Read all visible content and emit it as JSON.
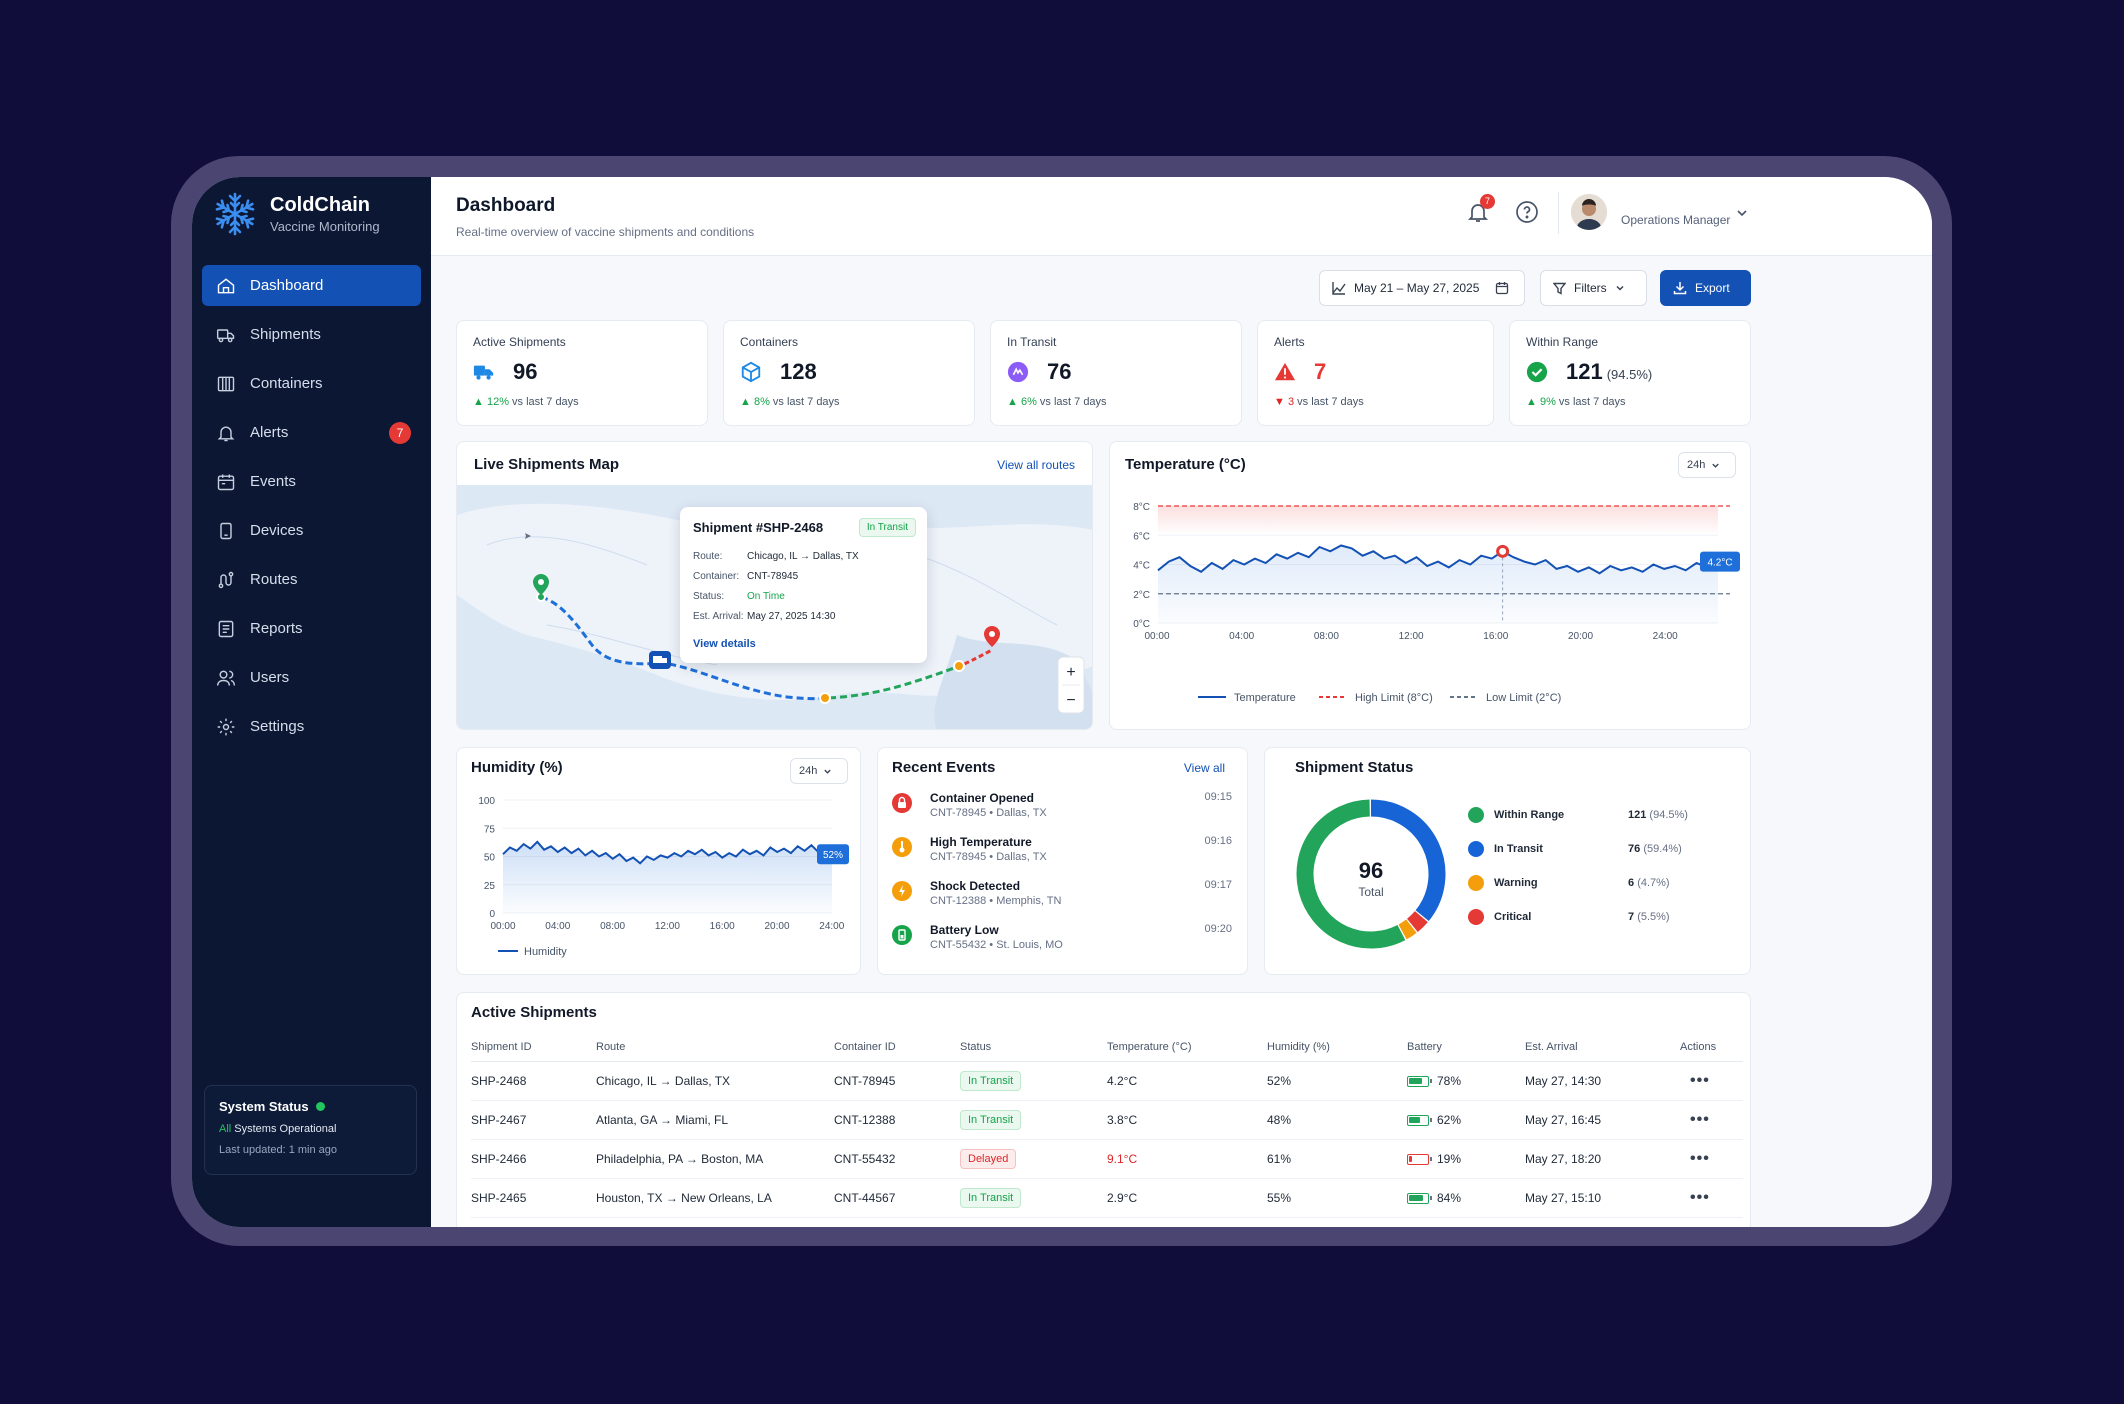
{
  "brand": {
    "title": "ColdChain",
    "subtitle": "Vaccine Monitoring"
  },
  "nav": [
    {
      "label": "Dashboard",
      "icon": "dashboard-icon",
      "active": true
    },
    {
      "label": "Shipments",
      "icon": "truck-icon"
    },
    {
      "label": "Containers",
      "icon": "container-icon"
    },
    {
      "label": "Alerts",
      "icon": "bell-icon",
      "badge": "7"
    },
    {
      "label": "Events",
      "icon": "calendar-icon"
    },
    {
      "label": "Devices",
      "icon": "device-icon"
    },
    {
      "label": "Routes",
      "icon": "route-icon"
    },
    {
      "label": "Reports",
      "icon": "report-icon"
    },
    {
      "label": "Users",
      "icon": "users-icon"
    },
    {
      "label": "Settings",
      "icon": "gear-icon"
    }
  ],
  "system_status": {
    "title": "System Status",
    "all": "All",
    "rest": " Systems Operational",
    "updated": "Last updated: 1 min ago"
  },
  "header": {
    "title": "Dashboard",
    "subtitle": "Real-time overview of vaccine shipments and conditions",
    "notif_count": "7",
    "role": "Operations Manager"
  },
  "toolbar": {
    "date_range": "May 21 – May 27, 2025",
    "filters": "Filters",
    "export": "Export"
  },
  "kpis": [
    {
      "label": "Active Shipments",
      "value": "96",
      "extra": "",
      "delta": "12%",
      "delta_text": " vs last 7 days",
      "dir": "up",
      "icon": "truck-icon",
      "color": "#1e88e5"
    },
    {
      "label": "Containers",
      "value": "128",
      "extra": "",
      "delta": "8%",
      "delta_text": " vs last 7 days",
      "dir": "up",
      "icon": "box-icon",
      "color": "#1e88e5"
    },
    {
      "label": "In Transit",
      "value": "76",
      "extra": "",
      "delta": "6%",
      "delta_text": " vs last 7 days",
      "dir": "up",
      "icon": "transit-icon",
      "color": "#8b5cf6"
    },
    {
      "label": "Alerts",
      "value": "7",
      "extra": "",
      "delta": "3",
      "delta_text": " vs last 7 days",
      "dir": "down",
      "icon": "warning-icon",
      "color": "#e53935"
    },
    {
      "label": "Within Range",
      "value": "121",
      "extra": "(94.5%)",
      "delta": "9%",
      "delta_text": " vs last 7 days",
      "dir": "up",
      "icon": "check-icon",
      "color": "#16a34a"
    }
  ],
  "map": {
    "title": "Live Shipments Map",
    "link": "View all routes",
    "popup": {
      "title": "Shipment #SHP-2468",
      "status": "In Transit",
      "rows": [
        {
          "k": "Route:",
          "v": "Chicago, IL → Dallas, TX"
        },
        {
          "k": "Container:",
          "v": "CNT-78945"
        },
        {
          "k": "Status:",
          "v": "On Time"
        },
        {
          "k": "Est. Arrival:",
          "v": "May 27, 2025 14:30"
        }
      ],
      "link": "View details"
    },
    "zoom_in": "+",
    "zoom_out": "−"
  },
  "temperature": {
    "title": "Temperature (°C)",
    "range": "24h",
    "current": "4.2°C",
    "legend": [
      "Temperature",
      "High Limit (8°C)",
      "Low Limit (2°C)"
    ],
    "colors": {
      "line": "#1351b4",
      "high": "#e53935",
      "low": "#64748b"
    }
  },
  "humidity": {
    "title": "Humidity (%)",
    "range": "24h",
    "current": "52%",
    "legend": "Humidity"
  },
  "chart_data": [
    {
      "type": "line",
      "title": "Temperature (°C)",
      "x_ticks": [
        "00:00",
        "04:00",
        "08:00",
        "12:00",
        "16:00",
        "20:00",
        "24:00"
      ],
      "y_ticks": [
        "0°C",
        "2°C",
        "4°C",
        "6°C",
        "8°C"
      ],
      "ylim": [
        0,
        8
      ],
      "xlim": [
        0,
        26
      ],
      "grid": true,
      "legend_position": "bottom",
      "limits": {
        "high": 8,
        "low": 2
      },
      "series": [
        {
          "name": "Temperature",
          "x": [
            0,
            0.5,
            1,
            1.5,
            2,
            2.5,
            3,
            3.5,
            4,
            4.5,
            5,
            5.5,
            6,
            6.5,
            7,
            7.5,
            8,
            8.5,
            9,
            9.5,
            10,
            10.5,
            11,
            11.5,
            12,
            12.5,
            13,
            13.5,
            14,
            14.5,
            15,
            15.5,
            16,
            16.5,
            17,
            17.5,
            18,
            18.5,
            19,
            19.5,
            20,
            20.5,
            21,
            21.5,
            22,
            22.5,
            23,
            23.5,
            24,
            24.5,
            25,
            25.5,
            26
          ],
          "y": [
            3.6,
            4.2,
            4.5,
            3.9,
            3.5,
            4.1,
            3.7,
            4.3,
            4.0,
            4.4,
            4.1,
            4.7,
            4.4,
            4.8,
            4.5,
            5.2,
            4.9,
            5.3,
            5.1,
            4.6,
            4.9,
            4.4,
            4.6,
            4.1,
            4.5,
            3.9,
            4.2,
            3.8,
            4.3,
            4.0,
            4.6,
            4.4,
            4.9,
            4.5,
            4.2,
            4.0,
            4.3,
            3.7,
            3.9,
            3.5,
            3.8,
            3.4,
            3.9,
            3.6,
            3.8,
            3.5,
            4.0,
            3.7,
            3.9,
            3.6,
            4.1,
            3.8,
            4.2
          ]
        }
      ],
      "annotations": [
        "4.2°C"
      ]
    },
    {
      "type": "area",
      "title": "Humidity (%)",
      "x_ticks": [
        "00:00",
        "04:00",
        "08:00",
        "12:00",
        "16:00",
        "20:00",
        "24:00"
      ],
      "y_ticks": [
        "0",
        "25",
        "50",
        "75",
        "100"
      ],
      "ylim": [
        0,
        100
      ],
      "xlim": [
        0,
        24
      ],
      "legend_position": "bottom",
      "series": [
        {
          "name": "Humidity",
          "x": [
            0,
            0.5,
            1,
            1.5,
            2,
            2.5,
            3,
            3.5,
            4,
            4.5,
            5,
            5.5,
            6,
            6.5,
            7,
            7.5,
            8,
            8.5,
            9,
            9.5,
            10,
            10.5,
            11,
            11.5,
            12,
            12.5,
            13,
            13.5,
            14,
            14.5,
            15,
            15.5,
            16,
            16.5,
            17,
            17.5,
            18,
            18.5,
            19,
            19.5,
            20,
            20.5,
            21,
            21.5,
            22,
            22.5,
            23,
            23.5,
            24
          ],
          "y": [
            52,
            58,
            55,
            61,
            57,
            63,
            56,
            59,
            54,
            58,
            53,
            57,
            51,
            55,
            50,
            53,
            48,
            52,
            46,
            49,
            44,
            50,
            47,
            51,
            49,
            53,
            50,
            55,
            52,
            56,
            51,
            54,
            49,
            53,
            50,
            56,
            52,
            55,
            51,
            58,
            54,
            57,
            53,
            59,
            55,
            60,
            54,
            58,
            52
          ]
        }
      ],
      "annotations": [
        "52%"
      ]
    },
    {
      "type": "pie",
      "title": "Shipment Status",
      "center_value": "96",
      "center_label": "Total",
      "slices": [
        {
          "label": "Within Range",
          "value": 121,
          "pct": "(94.5%)",
          "color": "#22a55a"
        },
        {
          "label": "In Transit",
          "value": 76,
          "pct": "(59.4%)",
          "color": "#1764d6"
        },
        {
          "label": "Warning",
          "value": 6,
          "pct": "(4.7%)",
          "color": "#f59e0b"
        },
        {
          "label": "Critical",
          "value": 7,
          "pct": "(5.5%)",
          "color": "#e53935"
        }
      ]
    }
  ],
  "events": {
    "title": "Recent Events",
    "link": "View all",
    "items": [
      {
        "title": "Container Opened",
        "sub": "CNT-78945 • Dallas, TX",
        "time": "09:15",
        "color": "#e53935",
        "icon": "lock-icon"
      },
      {
        "title": "High Temperature",
        "sub": "CNT-78945 • Dallas, TX",
        "time": "09:16",
        "color": "#f59e0b",
        "icon": "thermometer-icon"
      },
      {
        "title": "Shock Detected",
        "sub": "CNT-12388 • Memphis, TN",
        "time": "09:17",
        "color": "#f59e0b",
        "icon": "shock-icon"
      },
      {
        "title": "Battery Low",
        "sub": "CNT-55432 • St. Louis, MO",
        "time": "09:20",
        "color": "#16a34a",
        "icon": "battery-icon"
      }
    ]
  },
  "status_card": {
    "title": "Shipment Status"
  },
  "shipments": {
    "title": "Active Shipments",
    "columns": [
      "Shipment ID",
      "Route",
      "Container ID",
      "Status",
      "Temperature (°C)",
      "Humidity (%)",
      "Battery",
      "Est. Arrival",
      "Actions"
    ],
    "rows": [
      {
        "id": "SHP-2468",
        "route": "Chicago, IL → Dallas, TX",
        "container": "CNT-78945",
        "status": "In Transit",
        "temp": "4.2°C",
        "hum": "52%",
        "battery": "78%",
        "batt_level": 0.78,
        "eta": "May 27, 14:30"
      },
      {
        "id": "SHP-2467",
        "route": "Atlanta, GA → Miami, FL",
        "container": "CNT-12388",
        "status": "In Transit",
        "temp": "3.8°C",
        "hum": "48%",
        "battery": "62%",
        "batt_level": 0.62,
        "eta": "May 27, 16:45"
      },
      {
        "id": "SHP-2466",
        "route": "Philadelphia, PA → Boston, MA",
        "container": "CNT-55432",
        "status": "Delayed",
        "temp": "9.1°C",
        "hum": "61%",
        "battery": "19%",
        "batt_level": 0.19,
        "eta": "May 27, 18:20"
      },
      {
        "id": "SHP-2465",
        "route": "Houston, TX → New Orleans, LA",
        "container": "CNT-44567",
        "status": "In Transit",
        "temp": "2.9°C",
        "hum": "55%",
        "battery": "84%",
        "batt_level": 0.84,
        "eta": "May 27, 15:10"
      }
    ]
  }
}
